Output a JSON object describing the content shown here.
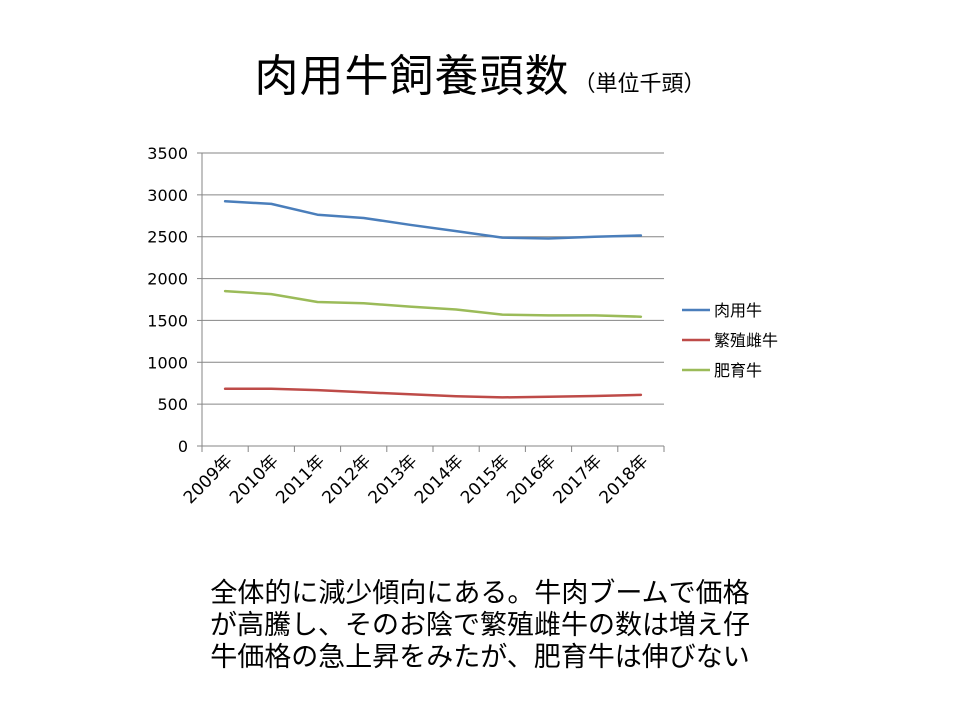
{
  "title": {
    "main": "肉用牛飼養頭数",
    "unit": "（単位千頭）"
  },
  "chart_data": {
    "type": "line",
    "categories": [
      "2009年",
      "2010年",
      "2011年",
      "2012年",
      "2013年",
      "2014年",
      "2015年",
      "2016年",
      "2017年",
      "2018年"
    ],
    "series": [
      {
        "name": "肉用牛",
        "color": "#4A7EBB",
        "values": [
          2923,
          2892,
          2763,
          2723,
          2642,
          2567,
          2489,
          2479,
          2499,
          2514
        ]
      },
      {
        "name": "繁殖雌牛",
        "color": "#BE4B48",
        "values": [
          684,
          684,
          668,
          642,
          618,
          595,
          580,
          589,
          597,
          610
        ]
      },
      {
        "name": "肥育牛",
        "color": "#9BBB59",
        "values": [
          1850,
          1815,
          1720,
          1705,
          1665,
          1630,
          1570,
          1560,
          1560,
          1545
        ]
      }
    ],
    "yticks": [
      "0",
      "500",
      "1000",
      "1500",
      "2000",
      "2500",
      "3000",
      "3500"
    ],
    "ylim": [
      0,
      3500
    ],
    "grid": true,
    "legend": "right"
  },
  "caption": [
    "全体的に減少傾向にある。牛肉ブームで価格",
    "が高騰し、そのお陰で繁殖雌牛の数は増え仔",
    "牛価格の急上昇をみたが、肥育牛は伸びない"
  ]
}
